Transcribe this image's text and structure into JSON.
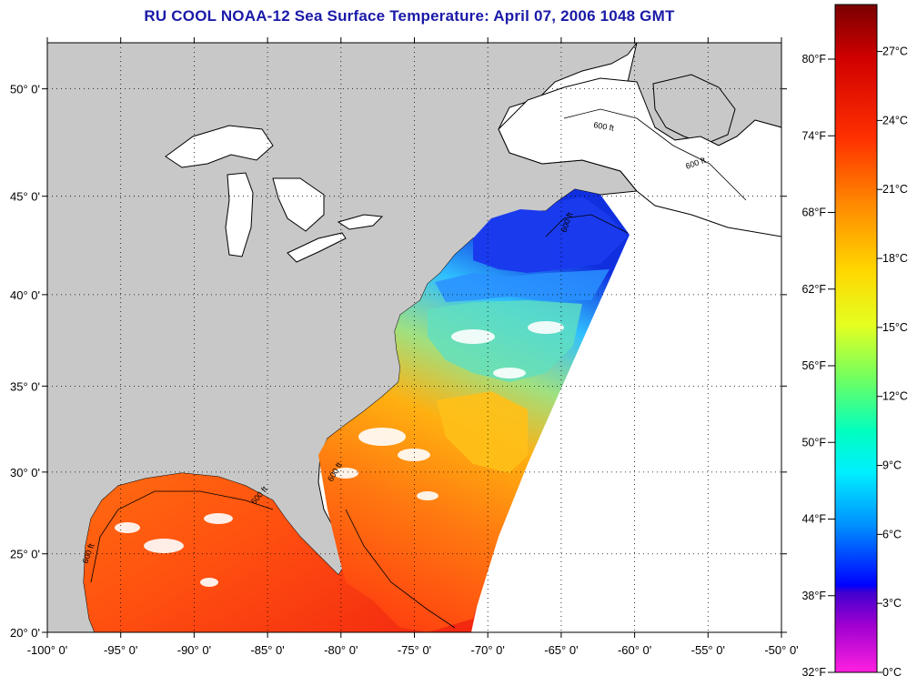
{
  "title": "RU COOL  NOAA-12  Sea Surface Temperature:  April 07, 2006 1048 GMT",
  "map": {
    "lon_range": [
      -100,
      -50
    ],
    "lat_range": [
      20,
      52
    ],
    "lon_ticks": [
      {
        "value": -100,
        "label": "-100° 0'"
      },
      {
        "value": -95,
        "label": "-95° 0'"
      },
      {
        "value": -90,
        "label": "-90° 0'"
      },
      {
        "value": -85,
        "label": "-85° 0'"
      },
      {
        "value": -80,
        "label": "-80° 0'"
      },
      {
        "value": -75,
        "label": "-75° 0'"
      },
      {
        "value": -70,
        "label": "-70° 0'"
      },
      {
        "value": -65,
        "label": "-65° 0'"
      },
      {
        "value": -60,
        "label": "-60° 0'"
      },
      {
        "value": -55,
        "label": "-55° 0'"
      },
      {
        "value": -50,
        "label": "-50° 0'"
      }
    ],
    "lat_ticks": [
      {
        "value": 20,
        "label": "20° 0'"
      },
      {
        "value": 25,
        "label": "25° 0'"
      },
      {
        "value": 30,
        "label": "30° 0'"
      },
      {
        "value": 35,
        "label": "35° 0'"
      },
      {
        "value": 40,
        "label": "40° 0'"
      },
      {
        "value": 45,
        "label": "45° 0'"
      },
      {
        "value": 50,
        "label": "50° 0'"
      }
    ],
    "contour_labels": [
      "600 ft",
      "600 ft",
      "600 ft",
      "600 ft",
      "600 ft",
      "600 ft"
    ],
    "colors": {
      "land": "#c8c8c8",
      "no_data": "#ffffff",
      "coastline": "#000000",
      "grid": "#000000"
    }
  },
  "color_scale": {
    "fahrenheit": [
      "80°F",
      "74°F",
      "68°F",
      "62°F",
      "56°F",
      "50°F",
      "44°F",
      "38°F",
      "32°F"
    ],
    "celsius": [
      "27°C",
      "24°C",
      "21°C",
      "18°C",
      "15°C",
      "12°C",
      "9°C",
      "6°C",
      "3°C",
      "0°C"
    ],
    "colors": [
      "#8b0000",
      "#ff0000",
      "#ff8000",
      "#ffd000",
      "#e0ff20",
      "#20ff80",
      "#00ffff",
      "#00a0ff",
      "#0000ff",
      "#8000c0",
      "#ff00ff"
    ]
  }
}
